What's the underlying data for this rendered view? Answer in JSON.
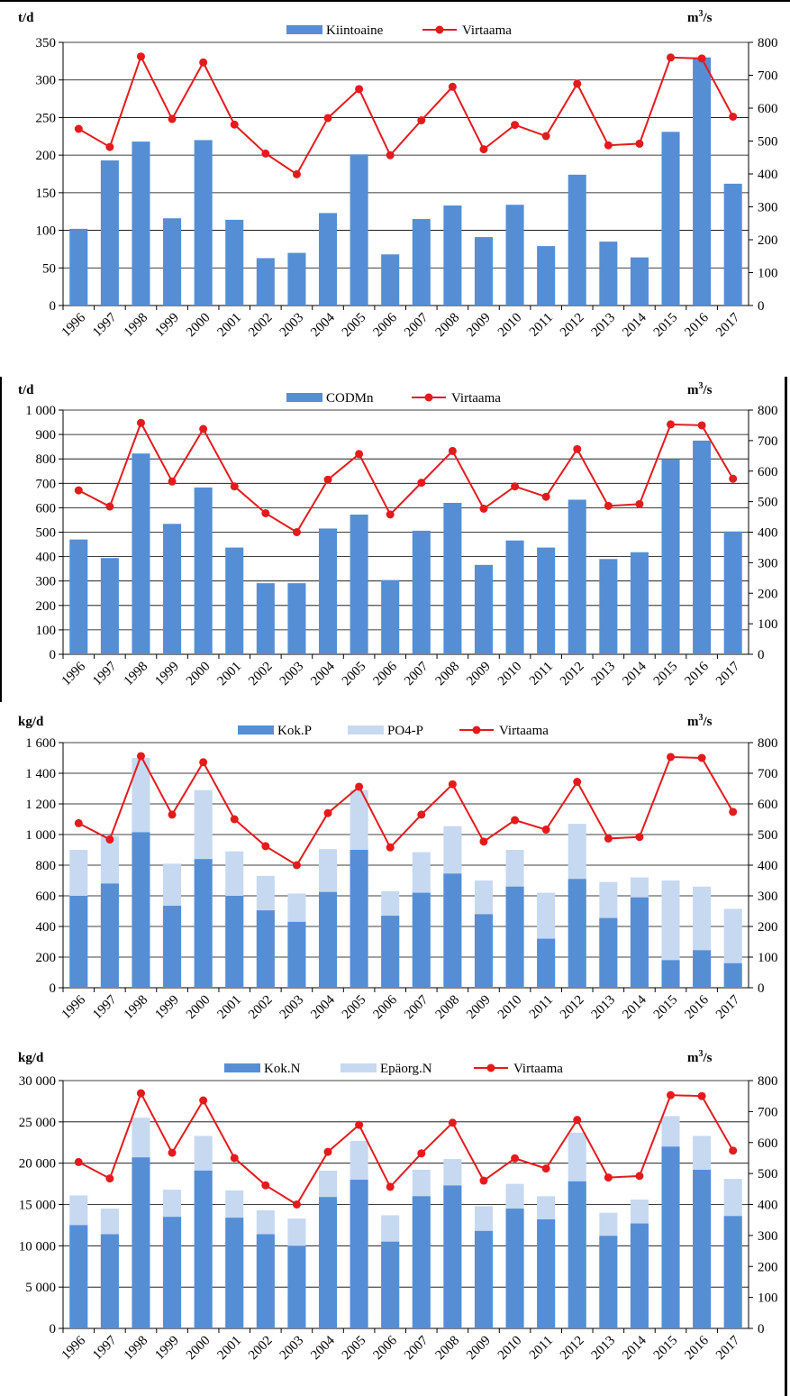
{
  "colors": {
    "bar_dark": "#558ED5",
    "bar_light": "#C6D9F1",
    "line": "#E41A1C",
    "grid": "#000000"
  },
  "years": [
    "1996",
    "1997",
    "1998",
    "1999",
    "2000",
    "2001",
    "2002",
    "2003",
    "2004",
    "2005",
    "2006",
    "2007",
    "2008",
    "2009",
    "2010",
    "2011",
    "2012",
    "2013",
    "2014",
    "2015",
    "2016",
    "2017"
  ],
  "charts": [
    {
      "id": "kiintoaine",
      "left_unit": "t/d",
      "right_unit_base": "m",
      "right_unit_sup": "3",
      "right_unit_tail": "/s",
      "legend": [
        {
          "label": "Kiintoaine",
          "kind": "bar",
          "color": "#558ED5"
        },
        {
          "label": "Virtaama",
          "kind": "line",
          "color": "#E41A1C"
        }
      ],
      "left_ticks": [
        "0",
        "50",
        "100",
        "150",
        "200",
        "250",
        "300",
        "350"
      ],
      "right_ticks": [
        "0",
        "100",
        "200",
        "300",
        "400",
        "500",
        "600",
        "700",
        "800"
      ]
    },
    {
      "id": "codmn",
      "left_unit": "t/d",
      "right_unit_base": "m",
      "right_unit_sup": "3",
      "right_unit_tail": "/s",
      "legend": [
        {
          "label": "CODMn",
          "kind": "bar",
          "color": "#558ED5"
        },
        {
          "label": "Virtaama",
          "kind": "line",
          "color": "#E41A1C"
        }
      ],
      "left_ticks": [
        "0",
        "100",
        "200",
        "300",
        "400",
        "500",
        "600",
        "700",
        "800",
        "900",
        "1 000"
      ],
      "right_ticks": [
        "0",
        "100",
        "200",
        "300",
        "400",
        "500",
        "600",
        "700",
        "800"
      ]
    },
    {
      "id": "fosfori",
      "left_unit": "kg/d",
      "right_unit_base": "m",
      "right_unit_sup": "3",
      "right_unit_tail": "/s",
      "legend": [
        {
          "label": "Kok.P",
          "kind": "bar",
          "color": "#558ED5"
        },
        {
          "label": "PO4-P",
          "kind": "bar",
          "color": "#C6D9F1"
        },
        {
          "label": "Virtaama",
          "kind": "line",
          "color": "#E41A1C"
        }
      ],
      "left_ticks": [
        "0",
        "200",
        "400",
        "600",
        "800",
        "1 000",
        "1 200",
        "1 400",
        "1 600"
      ],
      "right_ticks": [
        "0",
        "100",
        "200",
        "300",
        "400",
        "500",
        "600",
        "700",
        "800"
      ]
    },
    {
      "id": "typpi",
      "left_unit": "kg/d",
      "right_unit_base": "m",
      "right_unit_sup": "3",
      "right_unit_tail": "/s",
      "legend": [
        {
          "label": "Kok.N",
          "kind": "bar",
          "color": "#558ED5"
        },
        {
          "label": "Epäorg.N",
          "kind": "bar",
          "color": "#C6D9F1"
        },
        {
          "label": "Virtaama",
          "kind": "line",
          "color": "#E41A1C"
        }
      ],
      "left_ticks": [
        "0",
        "5 000",
        "10 000",
        "15 000",
        "20 000",
        "25 000",
        "30 000"
      ],
      "right_ticks": [
        "0",
        "100",
        "200",
        "300",
        "400",
        "500",
        "600",
        "700",
        "800"
      ]
    }
  ],
  "chart_data": [
    {
      "type": "bar",
      "title": "",
      "ylabel": "t/d",
      "y2label": "m3/s",
      "ylim": [
        0,
        350
      ],
      "y2lim": [
        0,
        800
      ],
      "categories": [
        "1996",
        "1997",
        "1998",
        "1999",
        "2000",
        "2001",
        "2002",
        "2003",
        "2004",
        "2005",
        "2006",
        "2007",
        "2008",
        "2009",
        "2010",
        "2011",
        "2012",
        "2013",
        "2014",
        "2015",
        "2016",
        "2017"
      ],
      "series": [
        {
          "name": "Kiintoaine",
          "kind": "bar",
          "axis": "left",
          "values": [
            102,
            193,
            218,
            116,
            220,
            114,
            63,
            70,
            123,
            201,
            68,
            115,
            133,
            91,
            134,
            79,
            174,
            85,
            64,
            231,
            330,
            162
          ]
        },
        {
          "name": "Virtaama",
          "kind": "line",
          "axis": "right",
          "values": [
            537,
            482,
            757,
            567,
            739,
            550,
            462,
            399,
            570,
            658,
            457,
            563,
            665,
            475,
            549,
            515,
            674,
            487,
            492,
            754,
            751,
            574
          ]
        }
      ]
    },
    {
      "type": "bar",
      "title": "",
      "ylabel": "t/d",
      "y2label": "m3/s",
      "ylim": [
        0,
        1000
      ],
      "y2lim": [
        0,
        800
      ],
      "categories": [
        "1996",
        "1997",
        "1998",
        "1999",
        "2000",
        "2001",
        "2002",
        "2003",
        "2004",
        "2005",
        "2006",
        "2007",
        "2008",
        "2009",
        "2010",
        "2011",
        "2012",
        "2013",
        "2014",
        "2015",
        "2016",
        "2017"
      ],
      "series": [
        {
          "name": "CODMn",
          "kind": "bar",
          "axis": "left",
          "values": [
            470,
            394,
            822,
            534,
            683,
            437,
            291,
            291,
            515,
            572,
            304,
            506,
            620,
            366,
            466,
            437,
            633,
            390,
            418,
            800,
            875,
            503
          ]
        },
        {
          "name": "Virtaama",
          "kind": "line",
          "axis": "right",
          "values": [
            537,
            484,
            758,
            566,
            738,
            550,
            462,
            400,
            572,
            656,
            458,
            562,
            666,
            477,
            550,
            516,
            672,
            486,
            492,
            753,
            750,
            575
          ]
        }
      ]
    },
    {
      "type": "bar",
      "title": "",
      "ylabel": "kg/d",
      "y2label": "m3/s",
      "ylim": [
        0,
        1600
      ],
      "y2lim": [
        0,
        800
      ],
      "categories": [
        "1996",
        "1997",
        "1998",
        "1999",
        "2000",
        "2001",
        "2002",
        "2003",
        "2004",
        "2005",
        "2006",
        "2007",
        "2008",
        "2009",
        "2010",
        "2011",
        "2012",
        "2013",
        "2014",
        "2015",
        "2016",
        "2017"
      ],
      "series": [
        {
          "name": "PO4-P",
          "kind": "bar",
          "axis": "left",
          "layer": "back",
          "values": [
            900,
            990,
            1500,
            810,
            1290,
            890,
            730,
            615,
            905,
            1290,
            630,
            885,
            1055,
            700,
            900,
            620,
            1070,
            690,
            720,
            700,
            660,
            515
          ]
        },
        {
          "name": "Kok.P",
          "kind": "bar",
          "axis": "left",
          "layer": "front",
          "values": [
            600,
            680,
            1015,
            535,
            840,
            600,
            505,
            430,
            625,
            900,
            470,
            620,
            745,
            480,
            660,
            320,
            710,
            455,
            590,
            180,
            245,
            160
          ]
        },
        {
          "name": "Virtaama",
          "kind": "line",
          "axis": "right",
          "values": [
            537,
            484,
            756,
            565,
            736,
            550,
            462,
            400,
            570,
            656,
            458,
            565,
            664,
            477,
            547,
            516,
            672,
            487,
            492,
            753,
            750,
            574
          ]
        }
      ]
    },
    {
      "type": "bar",
      "title": "",
      "ylabel": "kg/d",
      "y2label": "m3/s",
      "ylim": [
        0,
        30000
      ],
      "y2lim": [
        0,
        800
      ],
      "categories": [
        "1996",
        "1997",
        "1998",
        "1999",
        "2000",
        "2001",
        "2002",
        "2003",
        "2004",
        "2005",
        "2006",
        "2007",
        "2008",
        "2009",
        "2010",
        "2011",
        "2012",
        "2013",
        "2014",
        "2015",
        "2016",
        "2017"
      ],
      "series": [
        {
          "name": "Epäorg.N",
          "kind": "bar",
          "axis": "left",
          "layer": "back",
          "values": [
            16100,
            14500,
            25500,
            16800,
            23300,
            16700,
            14300,
            13300,
            19100,
            22700,
            13700,
            19200,
            20500,
            14800,
            17500,
            16000,
            23700,
            14000,
            15600,
            25700,
            23300,
            18100
          ]
        },
        {
          "name": "Kok.N",
          "kind": "bar",
          "axis": "left",
          "layer": "front",
          "values": [
            12500,
            11400,
            20700,
            13500,
            19100,
            13400,
            11400,
            10000,
            15900,
            18000,
            10500,
            16000,
            17300,
            11800,
            14500,
            13200,
            17800,
            11200,
            12700,
            22000,
            19200,
            13600
          ]
        },
        {
          "name": "Virtaama",
          "kind": "line",
          "axis": "right",
          "values": [
            537,
            484,
            759,
            567,
            736,
            550,
            462,
            400,
            570,
            657,
            457,
            565,
            664,
            477,
            549,
            516,
            673,
            487,
            492,
            753,
            750,
            574
          ]
        }
      ]
    }
  ]
}
